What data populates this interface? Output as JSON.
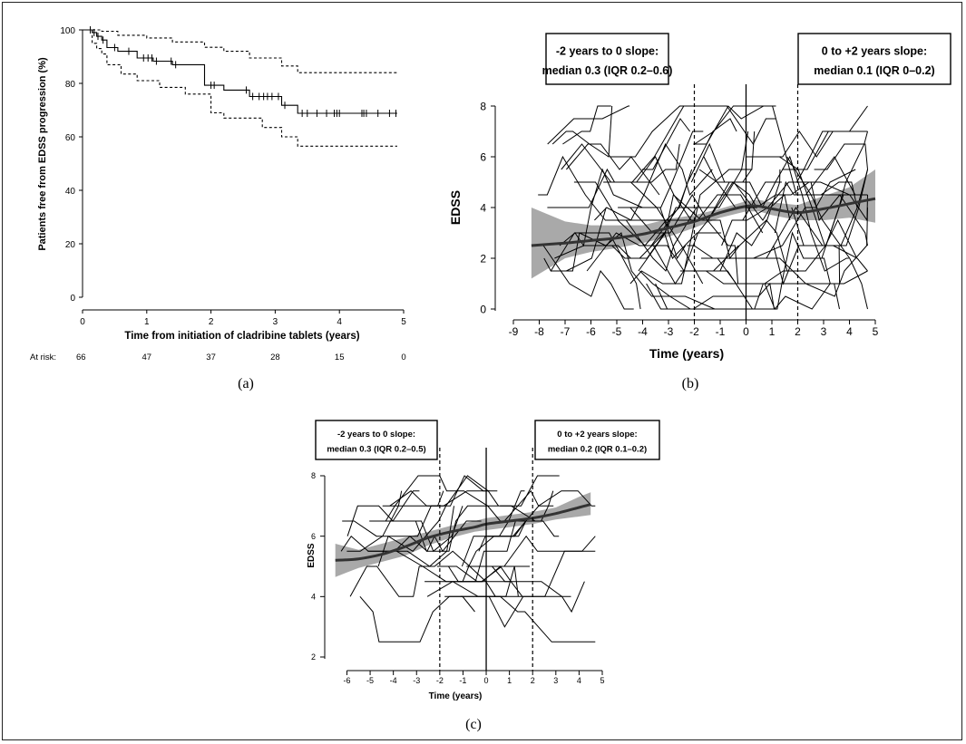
{
  "chart_data": [
    {
      "panel": "(a)",
      "type": "line",
      "xlabel": "Time from initiation of cladribine tablets (years)",
      "ylabel": "Patients free from EDSS progression (%)",
      "xlim": [
        0,
        5
      ],
      "ylim": [
        0,
        100
      ],
      "xticks": [
        "0",
        "1",
        "2",
        "3",
        "4",
        "5"
      ],
      "yticks": [
        "0",
        "20",
        "40",
        "60",
        "80",
        "100"
      ],
      "at_risk_label": "At risk:",
      "at_risk": [
        "66",
        "47",
        "37",
        "28",
        "15",
        "0"
      ],
      "series": [
        {
          "style": "solid",
          "x": [
            0,
            0.15,
            0.15,
            0.22,
            0.22,
            0.3,
            0.3,
            0.38,
            0.38,
            0.55,
            0.55,
            0.85,
            0.85,
            1.1,
            1.1,
            1.4,
            1.4,
            1.9,
            1.9,
            2.2,
            2.2,
            2.6,
            2.6,
            3.1,
            3.1,
            3.35,
            3.35,
            4.9
          ],
          "y": [
            100,
            100,
            99,
            99,
            97.6,
            97.6,
            96.2,
            96.2,
            93.4,
            93.4,
            92,
            92,
            89.5,
            89.5,
            88.3,
            88.3,
            87,
            87,
            79.3,
            79.3,
            77.5,
            77.5,
            75.1,
            75.1,
            71.8,
            71.8,
            68.8,
            68.8
          ]
        },
        {
          "style": "dashed",
          "x": [
            0,
            0.15,
            0.15,
            0.3,
            0.3,
            0.55,
            0.55,
            1.0,
            1.0,
            1.4,
            1.4,
            1.9,
            1.9,
            2.2,
            2.2,
            2.6,
            2.6,
            3.1,
            3.1,
            3.35,
            3.35,
            4.9
          ],
          "y": [
            100,
            100,
            100,
            100,
            99.5,
            99.5,
            98,
            98,
            97,
            97,
            95.5,
            95.5,
            93.5,
            93.5,
            92,
            92,
            89.5,
            89.5,
            86.5,
            86.5,
            84,
            84
          ]
        },
        {
          "style": "dashed",
          "x": [
            0,
            0.15,
            0.15,
            0.22,
            0.22,
            0.3,
            0.3,
            0.38,
            0.38,
            0.6,
            0.6,
            0.85,
            0.85,
            1.2,
            1.2,
            1.6,
            1.6,
            2.0,
            2.0,
            2.2,
            2.2,
            2.8,
            2.8,
            3.1,
            3.1,
            3.35,
            3.35,
            4.9
          ],
          "y": [
            100,
            100,
            95,
            95,
            93,
            93,
            91,
            91,
            87,
            87,
            83.5,
            83.5,
            81,
            81,
            78.5,
            78.5,
            76,
            76,
            69,
            69,
            67,
            67,
            63.5,
            63.5,
            60,
            60,
            56.5,
            56.5
          ]
        }
      ],
      "censor_times": [
        0.12,
        0.18,
        0.24,
        0.32,
        0.5,
        0.72,
        0.95,
        1.02,
        1.08,
        1.15,
        1.38,
        1.45,
        2.0,
        2.05,
        2.55,
        2.65,
        2.75,
        2.82,
        2.88,
        2.95,
        3.05,
        3.15,
        3.42,
        3.5,
        3.65,
        3.8,
        3.92,
        3.96,
        4.0,
        4.35,
        4.38,
        4.42,
        4.6,
        4.78,
        4.88
      ]
    },
    {
      "panel": "(b)",
      "type": "line",
      "xlabel": "Time (years)",
      "ylabel": "EDSS",
      "xlim": [
        -9,
        5
      ],
      "ylim": [
        0,
        8
      ],
      "xticks": [
        "-9",
        "-8",
        "-7",
        "-6",
        "-5",
        "-4",
        "-3",
        "-2",
        "-1",
        "0",
        "1",
        "2",
        "3",
        "4",
        "5"
      ],
      "yticks": [
        "0",
        "2",
        "4",
        "6",
        "8"
      ],
      "refline_solid": 0,
      "reflines_dashed": [
        -2,
        2
      ],
      "annotation_left": [
        "-2 years to 0 slope:",
        "median 0.3 (IQR 0.2–0.6)"
      ],
      "annotation_right": [
        "0 to +2 years slope:",
        "median 0.1 (IQR 0–0.2)"
      ],
      "smooth": {
        "x": [
          -8.3,
          -7,
          -6,
          -5,
          -4,
          -3,
          -2,
          -1,
          0,
          0.5,
          1,
          2,
          3,
          4,
          5
        ],
        "y": [
          2.5,
          2.6,
          2.7,
          2.8,
          2.95,
          3.2,
          3.45,
          3.8,
          4.05,
          4.05,
          3.95,
          3.8,
          3.95,
          4.15,
          4.35
        ]
      },
      "band_upper": [
        4.0,
        3.45,
        3.3,
        3.3,
        3.3,
        3.55,
        3.7,
        3.95,
        4.25,
        4.3,
        4.2,
        4.1,
        4.45,
        4.8,
        5.5
      ],
      "band_lower": [
        1.2,
        2.0,
        2.25,
        2.4,
        2.6,
        2.85,
        3.2,
        3.6,
        3.85,
        3.85,
        3.7,
        3.5,
        3.5,
        3.6,
        3.4
      ]
    },
    {
      "panel": "(c)",
      "type": "line",
      "xlabel": "Time (years)",
      "ylabel": "EDSS",
      "xlim": [
        -6.8,
        5
      ],
      "ylim": [
        2,
        8
      ],
      "xticks": [
        "-6",
        "-5",
        "-4",
        "-3",
        "-2",
        "-1",
        "0",
        "1",
        "2",
        "3",
        "4",
        "5"
      ],
      "yticks": [
        "2",
        "4",
        "6",
        "8"
      ],
      "refline_solid": 0,
      "reflines_dashed": [
        -2,
        2
      ],
      "annotation_left": [
        "-2 years to 0 slope:",
        "median 0.3 (IQR 0.2–0.5)"
      ],
      "annotation_right": [
        "0 to +2 years slope:",
        "median 0.2 (IQR 0.1–0.2)"
      ],
      "smooth": {
        "x": [
          -6.5,
          -5.5,
          -4.5,
          -3.5,
          -2.5,
          -1.5,
          -0.5,
          0,
          1,
          2,
          3,
          4,
          4.5
        ],
        "y": [
          5.2,
          5.25,
          5.4,
          5.65,
          5.95,
          6.15,
          6.3,
          6.4,
          6.5,
          6.6,
          6.75,
          6.95,
          7.05
        ]
      },
      "band_upper": [
        5.75,
        5.55,
        5.75,
        5.95,
        6.15,
        6.35,
        6.5,
        6.6,
        6.7,
        6.8,
        6.95,
        7.3,
        7.45
      ],
      "band_lower": [
        4.65,
        4.95,
        5.15,
        5.35,
        5.7,
        5.95,
        6.15,
        6.2,
        6.3,
        6.4,
        6.55,
        6.65,
        6.7
      ]
    }
  ],
  "panel_labels": {
    "a": "(a)",
    "b": "(b)",
    "c": "(c)"
  }
}
